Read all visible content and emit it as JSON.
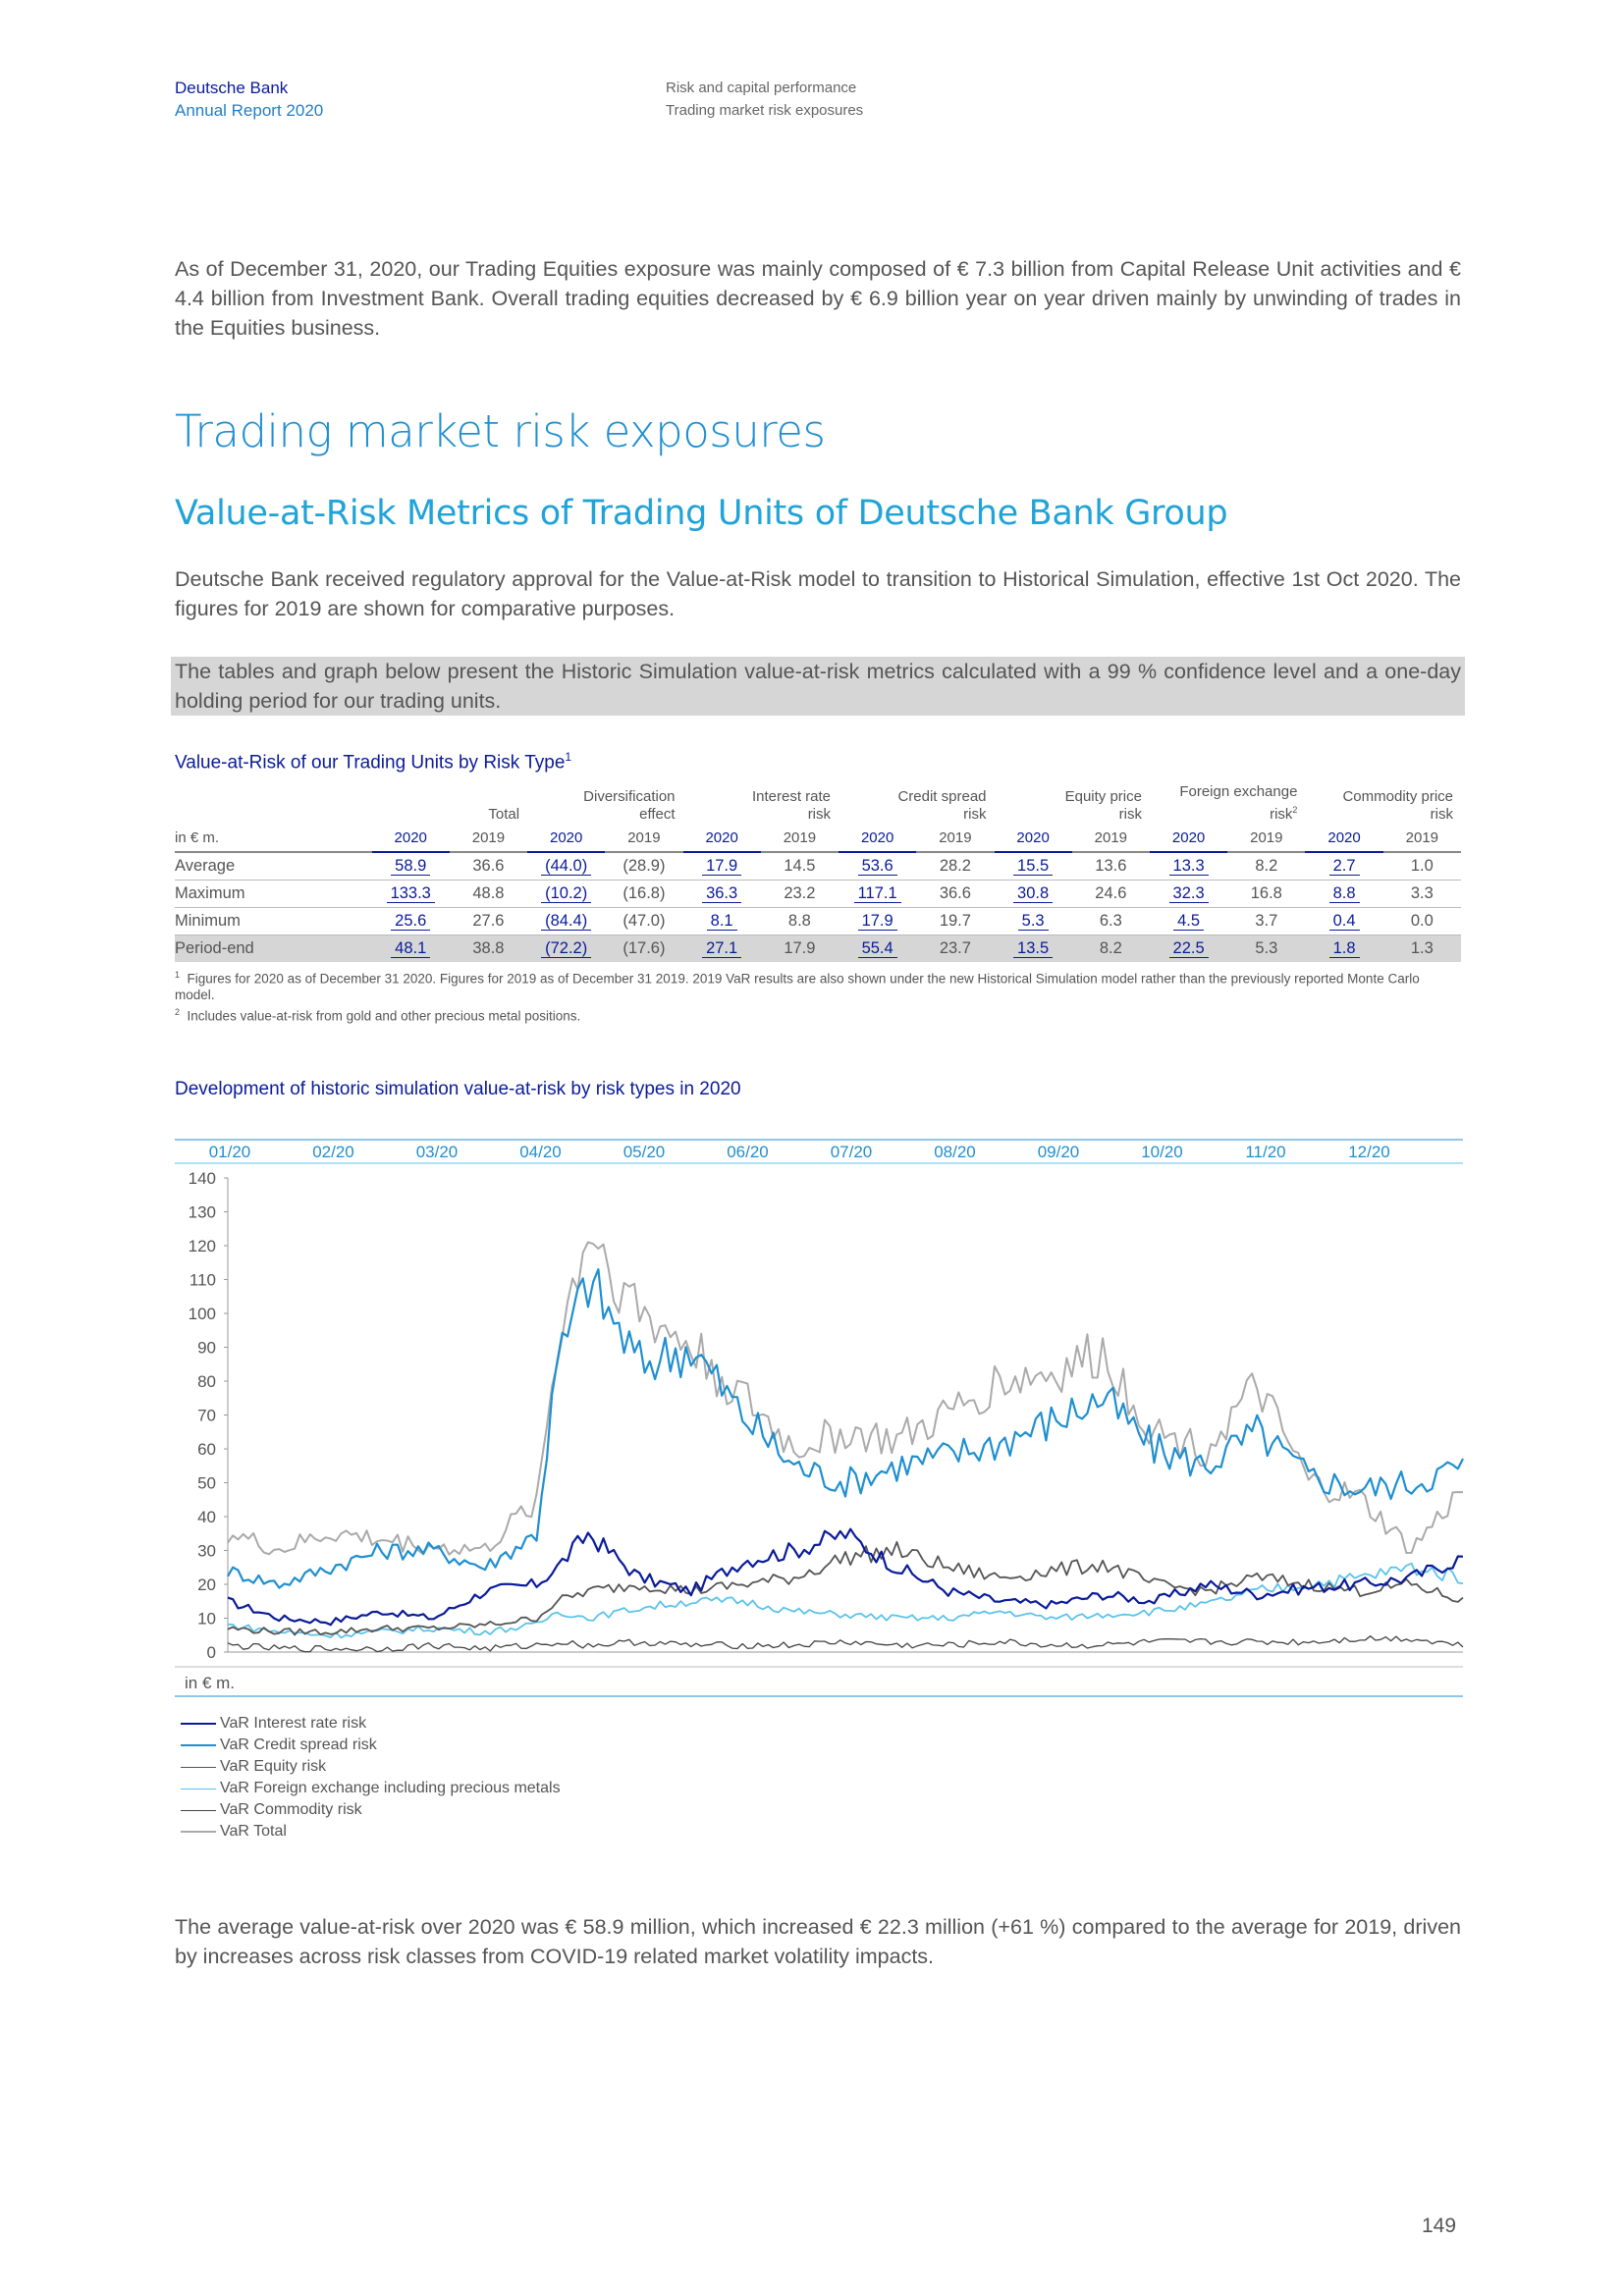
{
  "header": {
    "company": "Deutsche Bank",
    "report": "Annual Report 2020",
    "section": "Risk and capital performance",
    "subsection": "Trading market risk exposures"
  },
  "intro_paragraph": "As of December 31, 2020, our Trading Equities exposure was mainly composed of € 7.3 billion from Capital Release Unit activities and € 4.4 billion from Investment Bank. Overall trading equities decreased by € 6.9 billion year on year driven mainly by unwinding of trades in the Equities business.",
  "heading": "Trading market risk exposures",
  "subheading": "Value-at-Risk Metrics of Trading Units of Deutsche Bank Group",
  "approval_paragraph": "Deutsche Bank received regulatory approval for the Value-at-Risk model to transition to Historical Simulation, effective 1st Oct 2020. The figures for 2019 are shown for comparative purposes.",
  "highlight_paragraph": "The tables and graph below present the Historic Simulation value-at-risk metrics calculated with a 99 % confidence level and a one-day holding period for our trading units.",
  "table": {
    "title": "Value-at-Risk of our Trading Units by Risk Type",
    "title_footnote": "1",
    "unit_label": "in € m.",
    "groups": [
      {
        "l1": "",
        "l2": "Total",
        "sup": ""
      },
      {
        "l1": "Diversification",
        "l2": "effect",
        "sup": ""
      },
      {
        "l1": "Interest rate",
        "l2": "risk",
        "sup": ""
      },
      {
        "l1": "Credit spread",
        "l2": "risk",
        "sup": ""
      },
      {
        "l1": "Equity price",
        "l2": "risk",
        "sup": ""
      },
      {
        "l1": "Foreign exchange",
        "l2": "risk",
        "sup": "2"
      },
      {
        "l1": "Commodity price",
        "l2": "risk",
        "sup": ""
      }
    ],
    "years": [
      "2020",
      "2019"
    ],
    "rows": [
      {
        "label": "Average",
        "values": [
          "58.9",
          "36.6",
          "(44.0)",
          "(28.9)",
          "17.9",
          "14.5",
          "53.6",
          "28.2",
          "15.5",
          "13.6",
          "13.3",
          "8.2",
          "2.7",
          "1.0"
        ]
      },
      {
        "label": "Maximum",
        "values": [
          "133.3",
          "48.8",
          "(10.2)",
          "(16.8)",
          "36.3",
          "23.2",
          "117.1",
          "36.6",
          "30.8",
          "24.6",
          "32.3",
          "16.8",
          "8.8",
          "3.3"
        ]
      },
      {
        "label": "Minimum",
        "values": [
          "25.6",
          "27.6",
          "(84.4)",
          "(47.0)",
          "8.1",
          "8.8",
          "17.9",
          "19.7",
          "5.3",
          "6.3",
          "4.5",
          "3.7",
          "0.4",
          "0.0"
        ]
      },
      {
        "label": "Period-end",
        "values": [
          "48.1",
          "38.8",
          "(72.2)",
          "(17.6)",
          "27.1",
          "17.9",
          "55.4",
          "23.7",
          "13.5",
          "8.2",
          "22.5",
          "5.3",
          "1.8",
          "1.3"
        ]
      }
    ],
    "footnotes": [
      {
        "mark": "1",
        "text": "Figures for 2020 as of December 31 2020. Figures for 2019 as of December 31 2019. 2019 VaR results are also shown under the new Historical Simulation model rather than the previously reported Monte Carlo model."
      },
      {
        "mark": "2",
        "text": "Includes value-at-risk from gold and other precious metal positions."
      }
    ]
  },
  "chart_title": "Development of historic simulation value-at-risk by risk types in 2020",
  "chart_data": {
    "type": "line",
    "title": "Development of historic simulation value-at-risk by risk types in 2020",
    "months": [
      "01/20",
      "02/20",
      "03/20",
      "04/20",
      "05/20",
      "06/20",
      "07/20",
      "08/20",
      "09/20",
      "10/20",
      "11/20",
      "12/20"
    ],
    "ylabel": "in € m.",
    "ylim": [
      0,
      140
    ],
    "yticks": [
      0,
      10,
      20,
      30,
      40,
      50,
      60,
      70,
      80,
      90,
      100,
      110,
      120,
      130,
      140
    ],
    "x_sample_months": [
      0,
      0.5,
      1,
      1.5,
      2,
      2.5,
      3,
      3.2,
      3.5,
      4,
      4.5,
      5,
      5.5,
      6,
      6.5,
      7,
      7.5,
      8,
      8.5,
      9,
      9.5,
      10,
      10.5,
      11,
      11.5,
      12
    ],
    "series": [
      {
        "name": "VaR Interest rate risk",
        "color": "#0a1b9a",
        "width": 2.2,
        "values": [
          15,
          10,
          9,
          12,
          10,
          18,
          20,
          25,
          35,
          22,
          18,
          27,
          30,
          35,
          25,
          18,
          15,
          14,
          17,
          15,
          20,
          17,
          19,
          20,
          22,
          28
        ]
      },
      {
        "name": "VaR Credit spread risk",
        "color": "#1f8fd0",
        "width": 2.2,
        "values": [
          24,
          20,
          25,
          30,
          30,
          25,
          35,
          85,
          110,
          85,
          90,
          70,
          55,
          50,
          55,
          58,
          62,
          68,
          75,
          60,
          55,
          65,
          52,
          48,
          50,
          55
        ]
      },
      {
        "name": "VaR Equity risk",
        "color": "#555555",
        "width": 1.8,
        "values": [
          7,
          6,
          6,
          7,
          7,
          8,
          10,
          15,
          18,
          20,
          18,
          20,
          22,
          28,
          30,
          25,
          22,
          24,
          26,
          20,
          18,
          22,
          20,
          18,
          20,
          15
        ]
      },
      {
        "name": "VaR Foreign exchange including precious metals",
        "color": "#5bc3ea",
        "width": 1.8,
        "values": [
          8,
          6,
          5,
          6,
          7,
          6,
          8,
          12,
          10,
          13,
          15,
          15,
          12,
          11,
          10,
          10,
          12,
          10,
          11,
          12,
          14,
          18,
          20,
          22,
          25,
          22
        ]
      },
      {
        "name": "VaR Commodity risk",
        "color": "#444444",
        "width": 1.3,
        "values": [
          2,
          1,
          1,
          1,
          2,
          1,
          2,
          3,
          2,
          3,
          2,
          2,
          2,
          3,
          2,
          2,
          3,
          2,
          2,
          3,
          3,
          3,
          3,
          4,
          4,
          2
        ]
      },
      {
        "name": "VaR Total",
        "color": "#aaaaaa",
        "width": 2.0,
        "values": [
          35,
          30,
          35,
          33,
          31,
          30,
          45,
          90,
          125,
          100,
          90,
          75,
          60,
          65,
          62,
          70,
          80,
          82,
          88,
          65,
          60,
          78,
          50,
          45,
          30,
          48
        ]
      }
    ]
  },
  "closing_paragraph": "The average value-at-risk over 2020 was € 58.9 million, which increased € 22.3 million (+61 %) compared to the average for 2019, driven by increases across risk classes from COVID-19 related market volatility impacts.",
  "page_number": "149"
}
